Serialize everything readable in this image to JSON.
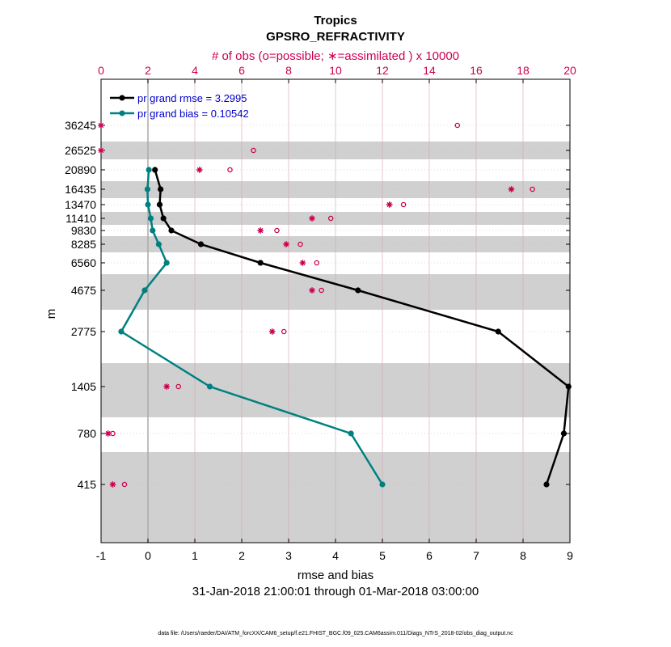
{
  "titles": {
    "line1": "Tropics",
    "line2": "GPSRO_REFRACTIVITY",
    "top_axis_label": "# of obs (o=possible; ∗=assimilated ) x 10000",
    "x_axis_label": "rmse and bias",
    "y_axis_label": "m",
    "date_range": "31-Jan-2018 21:00:01 through 01-Mar-2018 03:00:00",
    "footer": "data file: /Users/raeder/DAI/ATM_forcXX/CAM6_setup/f.e21.FHIST_BGC.f09_025.CAM6assim.011/Diags_NTrS_2018-02/obs_diag_output.nc"
  },
  "colors": {
    "rmse": "#000000",
    "bias": "#008080",
    "obs": "#cc0050",
    "band": "#d0d0d0",
    "legend_text": "#0000cc"
  },
  "chart_data": {
    "type": "line",
    "x_axis": {
      "label": "rmse and bias",
      "lim": [
        -1,
        9
      ],
      "ticks": [
        "-1",
        "0",
        "1",
        "2",
        "3",
        "4",
        "5",
        "6",
        "7",
        "8",
        "9"
      ]
    },
    "top_axis": {
      "label": "# of obs (o=possible; ∗=assimilated ) x 10000",
      "lim": [
        0,
        20
      ],
      "ticks": [
        "0",
        "2",
        "4",
        "6",
        "8",
        "10",
        "12",
        "14",
        "16",
        "18",
        "20"
      ]
    },
    "y_axis": {
      "label": "m",
      "ticks": [
        "36245",
        "26525",
        "20890",
        "16435",
        "13470",
        "11410",
        "9830",
        "8285",
        "6560",
        "4675",
        "2775",
        "1405",
        "780",
        "415"
      ]
    },
    "legend": [
      "pr grand rmse = 3.2995",
      "pr grand bias = 0.10542"
    ],
    "grid": true,
    "series": [
      {
        "name": "pr grand rmse = 3.2995",
        "levels": [
          "20890",
          "16435",
          "13470",
          "11410",
          "9830",
          "8285",
          "6560",
          "4675",
          "2775",
          "1405",
          "780",
          "415"
        ],
        "values": [
          0.15,
          0.27,
          0.25,
          0.33,
          0.5,
          1.13,
          2.4,
          4.48,
          7.47,
          8.97,
          8.87,
          8.5
        ]
      },
      {
        "name": "pr grand bias = 0.10542",
        "levels": [
          "20890",
          "16435",
          "13470",
          "11410",
          "9830",
          "8285",
          "6560",
          "4675",
          "2775",
          "1405",
          "780",
          "415"
        ],
        "values": [
          0.02,
          -0.01,
          0.0,
          0.06,
          0.1,
          0.23,
          0.4,
          -0.07,
          -0.57,
          1.32,
          4.33,
          5.0
        ]
      }
    ],
    "obs_possible": {
      "levels": [
        "36245",
        "26525",
        "20890",
        "16435",
        "13470",
        "11410",
        "9830",
        "8285",
        "6560",
        "4675",
        "2775",
        "1405",
        "780",
        "415"
      ],
      "values_x10000": [
        15.2,
        6.5,
        5.5,
        18.4,
        12.9,
        9.8,
        7.5,
        8.5,
        9.2,
        9.4,
        7.8,
        3.3,
        0.5,
        1.0
      ]
    },
    "obs_assimilated": {
      "levels": [
        "36245",
        "26525",
        "20890",
        "16435",
        "13470",
        "11410",
        "9830",
        "8285",
        "6560",
        "4675",
        "2775",
        "1405",
        "780",
        "415"
      ],
      "values_x10000": [
        0.0,
        0.0,
        4.2,
        17.5,
        12.3,
        9.0,
        6.8,
        7.9,
        8.6,
        9.0,
        7.3,
        2.8,
        0.3,
        0.5
      ]
    }
  }
}
